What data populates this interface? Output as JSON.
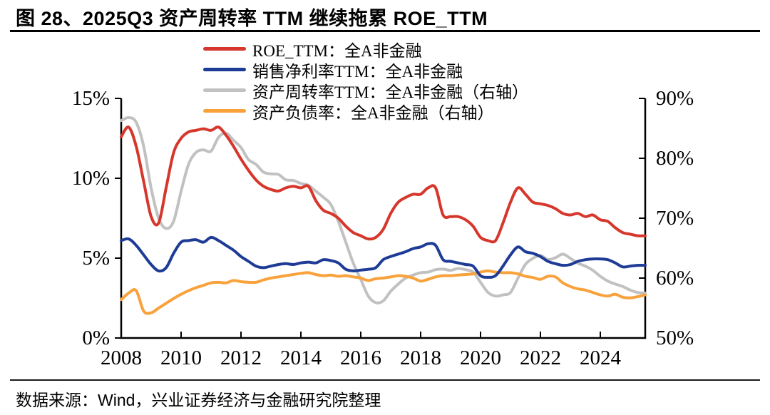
{
  "figure": {
    "title": "图 28、2025Q3 资产周转率 TTM 继续拖累 ROE_TTM",
    "source_note": "数据来源：Wind，兴业证券经济与金融研究院整理"
  },
  "chart_data": {
    "type": "line",
    "title": "图 28、2025Q3 资产周转率 TTM 继续拖累 ROE_TTM",
    "grid": false,
    "legend_position": "top-center",
    "x_axis": {
      "min": 2008,
      "max": 2025.5,
      "tick_years": [
        2008,
        2010,
        2012,
        2014,
        2016,
        2018,
        2020,
        2022,
        2024
      ],
      "tick_labels": [
        "2008",
        "2010",
        "2012",
        "2014",
        "2016",
        "2018",
        "2020",
        "2022",
        "2024"
      ]
    },
    "left_axis": {
      "min": 0,
      "max": 15,
      "tick_values": [
        0,
        5,
        10,
        15
      ],
      "ticks": [
        "0%",
        "5%",
        "10%",
        "15%"
      ]
    },
    "right_axis": {
      "min": 50,
      "max": 90,
      "tick_values": [
        50,
        60,
        70,
        80,
        90
      ],
      "ticks": [
        "50%",
        "60%",
        "70%",
        "80%",
        "90%"
      ]
    },
    "x": [
      2008,
      2008.25,
      2008.5,
      2008.75,
      2009,
      2009.25,
      2009.5,
      2009.75,
      2010,
      2010.25,
      2010.5,
      2010.75,
      2011,
      2011.25,
      2011.5,
      2011.75,
      2012,
      2012.25,
      2012.5,
      2012.75,
      2013,
      2013.25,
      2013.5,
      2013.75,
      2014,
      2014.25,
      2014.5,
      2014.75,
      2015,
      2015.25,
      2015.5,
      2015.75,
      2016,
      2016.25,
      2016.5,
      2016.75,
      2017,
      2017.25,
      2017.5,
      2017.75,
      2018,
      2018.25,
      2018.5,
      2018.75,
      2019,
      2019.25,
      2019.5,
      2019.75,
      2020,
      2020.25,
      2020.5,
      2020.75,
      2021,
      2021.25,
      2021.5,
      2021.75,
      2022,
      2022.25,
      2022.5,
      2022.75,
      2023,
      2023.25,
      2023.5,
      2023.75,
      2024,
      2024.25,
      2024.5,
      2024.75,
      2025,
      2025.25,
      2025.5
    ],
    "series": [
      {
        "name": "ROE_TTM：全A非金融",
        "axis": "left",
        "color": "#D6372C",
        "values": [
          12.6,
          13.2,
          12.0,
          9.8,
          7.6,
          7.2,
          9.4,
          11.6,
          12.5,
          12.9,
          13.0,
          13.1,
          13.0,
          13.2,
          12.7,
          12.0,
          11.2,
          10.5,
          9.9,
          9.5,
          9.3,
          9.2,
          9.4,
          9.5,
          9.4,
          9.5,
          8.6,
          8.0,
          7.8,
          7.5,
          7.0,
          6.6,
          6.4,
          6.2,
          6.3,
          6.8,
          7.8,
          8.5,
          8.8,
          9.0,
          9.0,
          9.4,
          9.4,
          7.7,
          7.6,
          7.6,
          7.4,
          7.0,
          6.3,
          6.1,
          6.1,
          7.2,
          8.5,
          9.4,
          9.0,
          8.5,
          8.4,
          8.3,
          8.1,
          7.8,
          7.7,
          7.8,
          7.6,
          7.7,
          7.4,
          7.3,
          6.9,
          6.6,
          6.5,
          6.4,
          6.4
        ]
      },
      {
        "name": "销售净利率TTM：全A非金融",
        "axis": "left",
        "color": "#1E3C96",
        "values": [
          6.1,
          6.2,
          5.8,
          5.2,
          4.6,
          4.2,
          4.4,
          5.3,
          6.0,
          6.1,
          6.15,
          6.0,
          6.3,
          6.1,
          5.8,
          5.5,
          5.1,
          4.8,
          4.5,
          4.4,
          4.5,
          4.6,
          4.65,
          4.6,
          4.7,
          4.75,
          4.7,
          4.9,
          4.85,
          4.7,
          4.3,
          4.2,
          4.25,
          4.3,
          4.4,
          4.9,
          5.1,
          5.25,
          5.4,
          5.6,
          5.7,
          5.9,
          5.8,
          4.9,
          4.8,
          4.7,
          4.6,
          4.5,
          3.9,
          3.8,
          3.9,
          4.5,
          5.2,
          5.7,
          5.4,
          5.3,
          5.1,
          4.8,
          4.65,
          4.55,
          4.6,
          4.8,
          4.9,
          4.95,
          4.95,
          4.9,
          4.7,
          4.45,
          4.5,
          4.55,
          4.55
        ]
      },
      {
        "name": "资产周转率TTM：全A非金融（右轴）",
        "axis": "right",
        "color": "#C1C1C1",
        "values": [
          86.3,
          86.8,
          86.0,
          82.0,
          75.0,
          70.0,
          68.3,
          69.5,
          74.5,
          79.0,
          81.0,
          81.4,
          81.2,
          83.5,
          84.2,
          83.0,
          81.8,
          79.8,
          79.0,
          77.7,
          77.4,
          77.3,
          76.4,
          76.3,
          75.8,
          75.5,
          74.5,
          73.5,
          72.3,
          69.5,
          66.0,
          62.5,
          59.8,
          57.0,
          55.9,
          56.2,
          57.8,
          59.0,
          60.0,
          60.5,
          60.9,
          61.0,
          61.4,
          61.5,
          61.3,
          61.6,
          61.4,
          61.0,
          59.3,
          57.6,
          57.0,
          57.2,
          57.6,
          60.0,
          62.3,
          63.3,
          63.8,
          63.1,
          63.4,
          64.0,
          63.3,
          62.5,
          62.0,
          61.3,
          60.3,
          59.5,
          59.0,
          58.6,
          58.0,
          57.6,
          57.5
        ]
      },
      {
        "name": "资产负债率：全A非金融（右轴）",
        "axis": "right",
        "color": "#F9A23C",
        "values": [
          56.4,
          57.5,
          57.9,
          54.5,
          54.2,
          55.0,
          55.8,
          56.6,
          57.3,
          57.9,
          58.4,
          58.8,
          59.2,
          59.3,
          59.2,
          59.6,
          59.4,
          59.3,
          59.3,
          59.7,
          60.0,
          60.2,
          60.4,
          60.6,
          60.8,
          60.9,
          60.6,
          60.4,
          60.5,
          60.3,
          60.4,
          60.2,
          60.0,
          59.6,
          59.9,
          60.0,
          60.2,
          60.4,
          60.3,
          60.0,
          59.5,
          59.8,
          60.2,
          60.4,
          60.4,
          60.5,
          60.6,
          60.7,
          61.0,
          61.2,
          61.0,
          60.9,
          60.9,
          60.7,
          60.3,
          60.1,
          59.8,
          60.3,
          60.2,
          59.2,
          58.6,
          58.2,
          58.0,
          57.6,
          57.2,
          57.0,
          57.3,
          56.8,
          56.7,
          56.9,
          57.2
        ]
      }
    ]
  }
}
